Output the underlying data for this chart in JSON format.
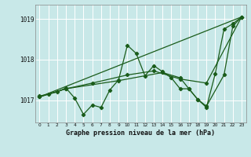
{
  "bg_color": "#c8e8e8",
  "grid_color": "#aad4d4",
  "line_color": "#1a5c1a",
  "title": "Graphe pression niveau de la mer (hPa)",
  "ylabel_values": [
    1017,
    1018,
    1019
  ],
  "ylim": [
    1016.45,
    1019.35
  ],
  "xlim": [
    -0.5,
    23.5
  ],
  "xticks": [
    0,
    1,
    2,
    3,
    4,
    5,
    6,
    7,
    8,
    9,
    10,
    11,
    12,
    13,
    14,
    15,
    16,
    17,
    18,
    19,
    20,
    21,
    22,
    23
  ],
  "series1_x": [
    0,
    1,
    2,
    3,
    4,
    5,
    6,
    7,
    8,
    9,
    10,
    11,
    12,
    13,
    14,
    15,
    16,
    17,
    18,
    19,
    20,
    21,
    22,
    23
  ],
  "series1_y": [
    1017.1,
    1017.15,
    1017.2,
    1017.3,
    1017.05,
    1016.65,
    1016.88,
    1016.82,
    1017.25,
    1017.5,
    1018.35,
    1018.15,
    1017.6,
    1017.85,
    1017.7,
    1017.55,
    1017.28,
    1017.28,
    1017.02,
    1016.82,
    1017.65,
    1018.75,
    1018.88,
    1019.05
  ],
  "series2_x": [
    0,
    23
  ],
  "series2_y": [
    1017.08,
    1019.05
  ],
  "series3_x": [
    0,
    3,
    6,
    10,
    13,
    16,
    19,
    23
  ],
  "series3_y": [
    1017.08,
    1017.28,
    1017.42,
    1017.62,
    1017.72,
    1017.52,
    1017.42,
    1019.05
  ],
  "series4_x": [
    0,
    3,
    9,
    14,
    16,
    17,
    18,
    19,
    21,
    22,
    23
  ],
  "series4_y": [
    1017.08,
    1017.28,
    1017.48,
    1017.68,
    1017.55,
    1017.28,
    1017.02,
    1016.85,
    1017.62,
    1018.82,
    1019.05
  ]
}
